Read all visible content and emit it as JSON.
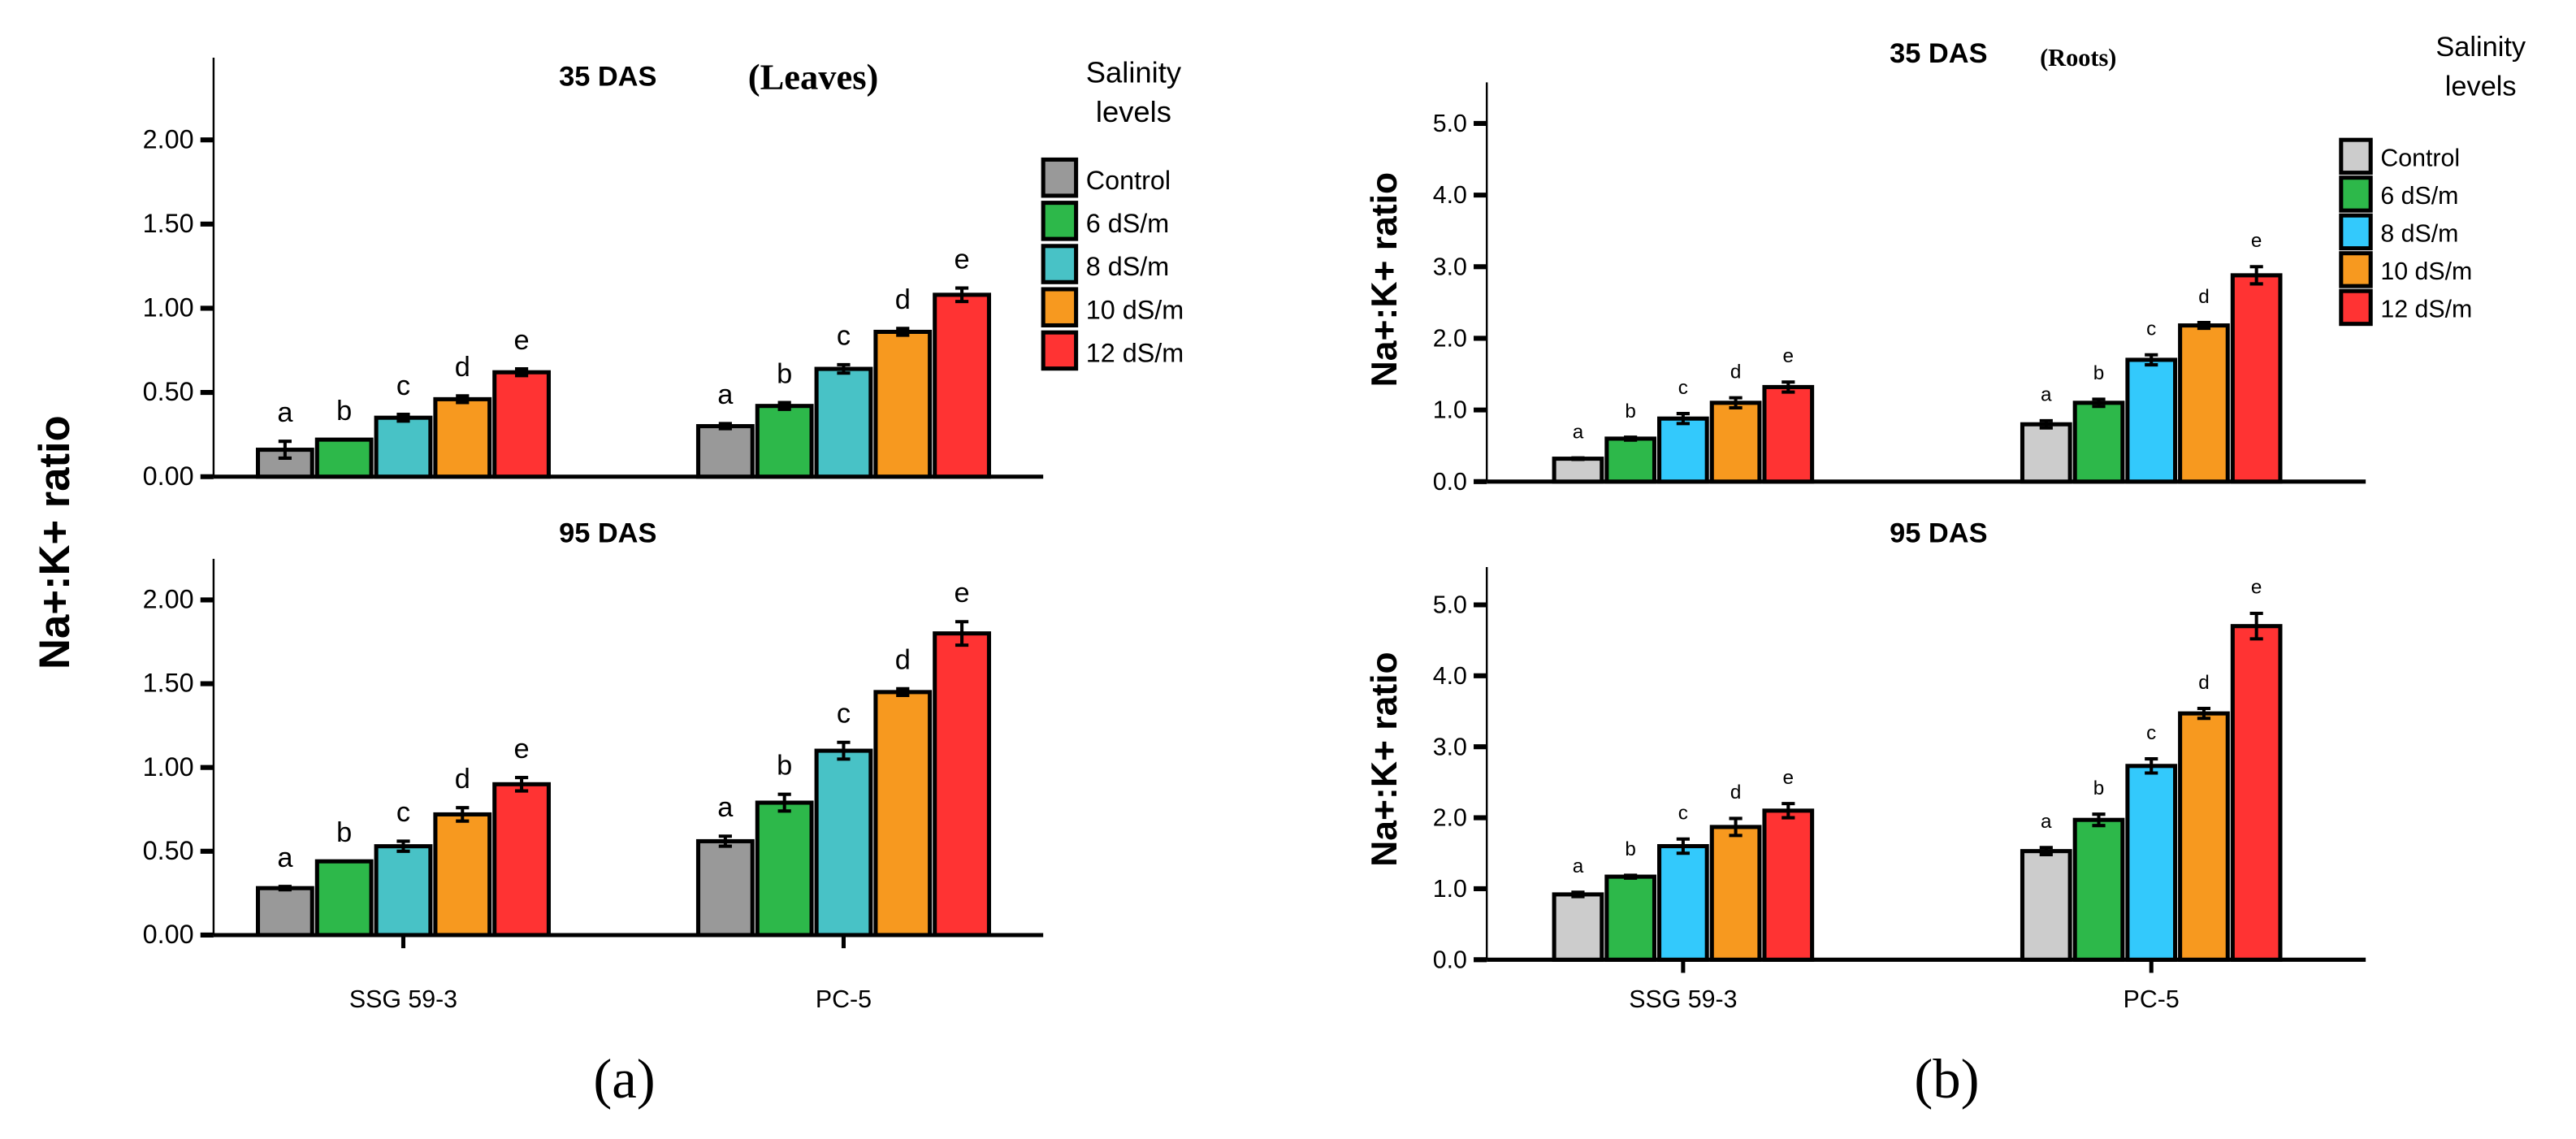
{
  "legend": {
    "title_line1": "Salinity",
    "title_line2": "levels",
    "items": [
      "Control",
      "6 dS/m",
      "8 dS/m",
      "10 dS/m",
      "12 dS/m"
    ]
  },
  "colors": {
    "a": [
      "#999999",
      "#2db84a",
      "#48c2c6",
      "#f7991f",
      "#ff3333"
    ],
    "b": [
      "#cccccc",
      "#2db84a",
      "#33c9fc",
      "#f7991f",
      "#ff3333"
    ]
  },
  "panel_labels": {
    "a": "(a)",
    "b": "(b)"
  },
  "chart_data": [
    {
      "id": "a-top",
      "type": "bar",
      "panel": "a",
      "title": "35 DAS",
      "subtitle": "(Leaves)",
      "ylabel": "Na+:K+ ratio",
      "ylim": [
        0,
        2.2
      ],
      "yticks": [
        "0.00",
        "0.50",
        "1.00",
        "1.50",
        "2.00"
      ],
      "categories": [
        "SSG 59-3",
        "PC-5"
      ],
      "series": [
        {
          "name": "Control",
          "values": [
            0.16,
            0.3
          ],
          "errors": [
            0.05,
            0.015
          ],
          "letters": [
            "a",
            "a"
          ]
        },
        {
          "name": "6 dS/m",
          "values": [
            0.22,
            0.42
          ],
          "errors": [
            0.0,
            0.02
          ],
          "letters": [
            "b",
            "b"
          ]
        },
        {
          "name": "8 dS/m",
          "values": [
            0.35,
            0.64
          ],
          "errors": [
            0.02,
            0.025
          ],
          "letters": [
            "c",
            "c"
          ]
        },
        {
          "name": "10 dS/m",
          "values": [
            0.46,
            0.86
          ],
          "errors": [
            0.02,
            0.02
          ],
          "letters": [
            "d",
            "d"
          ]
        },
        {
          "name": "12 dS/m",
          "values": [
            0.62,
            1.08
          ],
          "errors": [
            0.02,
            0.04
          ],
          "letters": [
            "e",
            "e"
          ]
        }
      ]
    },
    {
      "id": "a-bottom",
      "type": "bar",
      "panel": "a",
      "title": "95 DAS",
      "ylim": [
        0,
        2.2
      ],
      "yticks": [
        "0.00",
        "0.50",
        "1.00",
        "1.50",
        "2.00"
      ],
      "categories": [
        "SSG 59-3",
        "PC-5"
      ],
      "series": [
        {
          "name": "Control",
          "values": [
            0.28,
            0.56
          ],
          "errors": [
            0.01,
            0.03
          ],
          "letters": [
            "a",
            "a"
          ]
        },
        {
          "name": "6 dS/m",
          "values": [
            0.44,
            0.79
          ],
          "errors": [
            0.0,
            0.05
          ],
          "letters": [
            "b",
            "b"
          ]
        },
        {
          "name": "8 dS/m",
          "values": [
            0.53,
            1.1
          ],
          "errors": [
            0.03,
            0.05
          ],
          "letters": [
            "c",
            "c"
          ]
        },
        {
          "name": "10 dS/m",
          "values": [
            0.72,
            1.45
          ],
          "errors": [
            0.04,
            0.02
          ],
          "letters": [
            "d",
            "d"
          ]
        },
        {
          "name": "12 dS/m",
          "values": [
            0.9,
            1.8
          ],
          "errors": [
            0.04,
            0.07
          ],
          "letters": [
            "e",
            "e"
          ]
        }
      ]
    },
    {
      "id": "b-top",
      "type": "bar",
      "panel": "b",
      "title": "35 DAS",
      "subtitle": "(Roots)",
      "ylabel": "Na+:K+ ratio",
      "ylim": [
        0,
        5.5
      ],
      "yticks": [
        "0.0",
        "1.0",
        "2.0",
        "3.0",
        "4.0",
        "5.0"
      ],
      "categories": [
        "SSG 59-3",
        "PC-5"
      ],
      "series": [
        {
          "name": "Control",
          "values": [
            0.32,
            0.8
          ],
          "errors": [
            0.01,
            0.05
          ],
          "letters": [
            "a",
            "a"
          ]
        },
        {
          "name": "6 dS/m",
          "values": [
            0.6,
            1.1
          ],
          "errors": [
            0.02,
            0.05
          ],
          "letters": [
            "b",
            "b"
          ]
        },
        {
          "name": "8 dS/m",
          "values": [
            0.88,
            1.7
          ],
          "errors": [
            0.07,
            0.07
          ],
          "letters": [
            "c",
            "c"
          ]
        },
        {
          "name": "10 dS/m",
          "values": [
            1.1,
            2.18
          ],
          "errors": [
            0.07,
            0.04
          ],
          "letters": [
            "d",
            "d"
          ]
        },
        {
          "name": "12 dS/m",
          "values": [
            1.32,
            2.88
          ],
          "errors": [
            0.07,
            0.12
          ],
          "letters": [
            "e",
            "e"
          ]
        }
      ]
    },
    {
      "id": "b-bottom",
      "type": "bar",
      "panel": "b",
      "title": "95 DAS",
      "ylabel": "Na+:K+ ratio",
      "ylim": [
        0,
        5.5
      ],
      "yticks": [
        "0.0",
        "1.0",
        "2.0",
        "3.0",
        "4.0",
        "5.0"
      ],
      "categories": [
        "SSG 59-3",
        "PC-5"
      ],
      "series": [
        {
          "name": "Control",
          "values": [
            0.92,
            1.53
          ],
          "errors": [
            0.03,
            0.05
          ],
          "letters": [
            "a",
            "a"
          ]
        },
        {
          "name": "6 dS/m",
          "values": [
            1.17,
            1.97
          ],
          "errors": [
            0.02,
            0.08
          ],
          "letters": [
            "b",
            "b"
          ]
        },
        {
          "name": "8 dS/m",
          "values": [
            1.6,
            2.73
          ],
          "errors": [
            0.1,
            0.1
          ],
          "letters": [
            "c",
            "c"
          ]
        },
        {
          "name": "10 dS/m",
          "values": [
            1.87,
            3.47
          ],
          "errors": [
            0.12,
            0.07
          ],
          "letters": [
            "d",
            "d"
          ]
        },
        {
          "name": "12 dS/m",
          "values": [
            2.1,
            4.7
          ],
          "errors": [
            0.1,
            0.18
          ],
          "letters": [
            "e",
            "e"
          ]
        }
      ]
    }
  ]
}
